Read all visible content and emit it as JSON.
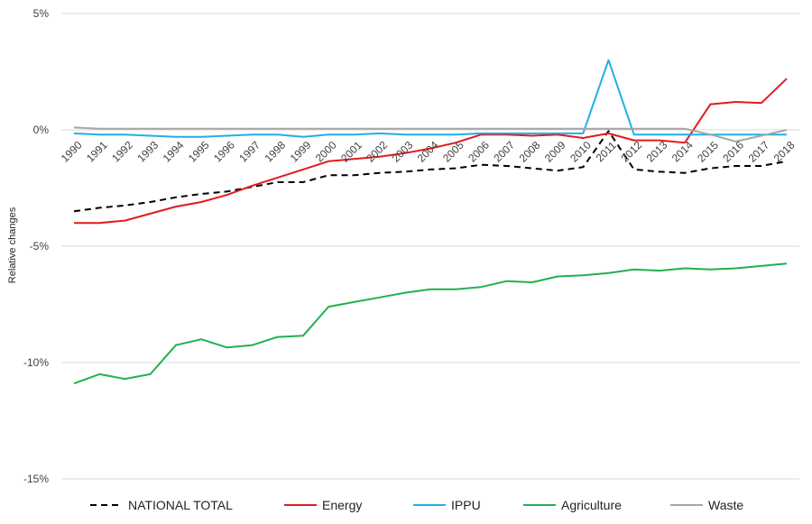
{
  "chart_data": {
    "type": "line",
    "ylabel": "Relative changes",
    "xlabel": "",
    "y_ticks": [
      5,
      0,
      -5,
      -10,
      -15
    ],
    "y_tick_labels": [
      "5%",
      "0%",
      "-5%",
      "-10%",
      "-15%"
    ],
    "ylim": [
      -15,
      5
    ],
    "grid": true,
    "legend_position": "bottom",
    "x": [
      "1990",
      "1991",
      "1992",
      "1993",
      "1994",
      "1995",
      "1996",
      "1997",
      "1998",
      "1999",
      "2000",
      "2001",
      "2002",
      "2003",
      "2004",
      "2005",
      "2006",
      "2007",
      "2008",
      "2009",
      "2010",
      "2011",
      "2012",
      "2013",
      "2014",
      "2015",
      "2016",
      "2017",
      "2018"
    ],
    "series": [
      {
        "name": "NATIONAL TOTAL",
        "color": "#000000",
        "dash": true,
        "values": [
          -3.5,
          -3.35,
          -3.25,
          -3.1,
          -2.9,
          -2.75,
          -2.65,
          -2.45,
          -2.25,
          -2.25,
          -1.95,
          -1.95,
          -1.85,
          -1.8,
          -1.7,
          -1.65,
          -1.5,
          -1.55,
          -1.65,
          -1.75,
          -1.6,
          -0.05,
          -1.7,
          -1.8,
          -1.85,
          -1.65,
          -1.55,
          -1.55,
          -1.35
        ]
      },
      {
        "name": "Energy",
        "color": "#e31a1c",
        "dash": false,
        "values": [
          -4.0,
          -4.0,
          -3.9,
          -3.6,
          -3.3,
          -3.1,
          -2.8,
          -2.4,
          -2.05,
          -1.7,
          -1.35,
          -1.25,
          -1.15,
          -1.0,
          -0.8,
          -0.55,
          -0.2,
          -0.2,
          -0.25,
          -0.2,
          -0.35,
          -0.15,
          -0.45,
          -0.45,
          -0.55,
          1.1,
          1.2,
          1.15,
          2.2
        ]
      },
      {
        "name": "IPPU",
        "color": "#1fb0e6",
        "dash": false,
        "values": [
          -0.15,
          -0.2,
          -0.2,
          -0.25,
          -0.3,
          -0.3,
          -0.25,
          -0.2,
          -0.2,
          -0.3,
          -0.2,
          -0.2,
          -0.15,
          -0.2,
          -0.2,
          -0.2,
          -0.15,
          -0.15,
          -0.15,
          -0.15,
          -0.15,
          3.0,
          -0.2,
          -0.2,
          -0.2,
          -0.2,
          -0.2,
          -0.2,
          -0.2
        ]
      },
      {
        "name": "Agriculture",
        "color": "#22b14c",
        "dash": false,
        "values": [
          -10.9,
          -10.5,
          -10.7,
          -10.5,
          -9.25,
          -9.0,
          -9.35,
          -9.25,
          -8.9,
          -8.85,
          -7.6,
          -7.4,
          -7.2,
          -7.0,
          -6.85,
          -6.85,
          -6.75,
          -6.5,
          -6.55,
          -6.3,
          -6.25,
          -6.15,
          -6.0,
          -6.05,
          -5.95,
          -6.0,
          -5.95,
          -5.85,
          -5.75
        ]
      },
      {
        "name": "Waste",
        "color": "#a6a6a6",
        "dash": false,
        "values": [
          0.1,
          0.05,
          0.05,
          0.05,
          0.05,
          0.05,
          0.05,
          0.05,
          0.05,
          0.05,
          0.05,
          0.05,
          0.05,
          0.05,
          0.05,
          0.05,
          0.05,
          0.05,
          0.05,
          0.05,
          0.05,
          0.05,
          0.05,
          0.05,
          0.05,
          -0.2,
          -0.5,
          -0.25,
          0.0
        ]
      }
    ]
  }
}
